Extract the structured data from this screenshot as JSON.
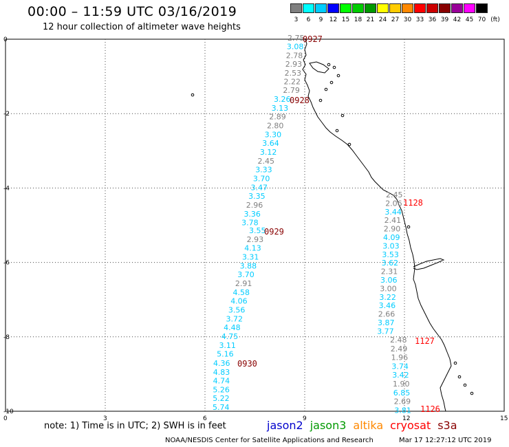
{
  "header": {
    "title": "00:00 – 11:59 UTC 03/16/2019",
    "subtitle": "12 hour collection of altimeter wave heights"
  },
  "legend": {
    "unit": "(ft)",
    "bins": [
      {
        "label": "3",
        "color": "#808080"
      },
      {
        "label": "6",
        "color": "#00ffff"
      },
      {
        "label": "9",
        "color": "#00ccff"
      },
      {
        "label": "12",
        "color": "#0000ff"
      },
      {
        "label": "15",
        "color": "#00ff00"
      },
      {
        "label": "18",
        "color": "#00cc00"
      },
      {
        "label": "21",
        "color": "#009900"
      },
      {
        "label": "24",
        "color": "#ffff00"
      },
      {
        "label": "27",
        "color": "#ffcc00"
      },
      {
        "label": "30",
        "color": "#ff8800"
      },
      {
        "label": "33",
        "color": "#ff0000"
      },
      {
        "label": "36",
        "color": "#cc0000"
      },
      {
        "label": "39",
        "color": "#880000"
      },
      {
        "label": "42",
        "color": "#990099"
      },
      {
        "label": "45",
        "color": "#ff00ff"
      },
      {
        "label": "70",
        "color": "#000000"
      }
    ]
  },
  "axes": {
    "x_ticks": [
      "0",
      "3",
      "6",
      "9",
      "12",
      "15"
    ],
    "y_ticks": [
      "0",
      "-2",
      "-4",
      "-6",
      "-8",
      "-10"
    ]
  },
  "colors": {
    "gray": "#808080",
    "cyan": "#00ccff",
    "pass_dark": "#880000",
    "pass_red": "#ff0000"
  },
  "tracks": [
    {
      "pass": "0927",
      "pass_color": "dark",
      "values": [
        {
          "v": "2.75",
          "c": "gray"
        },
        {
          "v": "3.08",
          "c": "cyan"
        },
        {
          "v": "2.78",
          "c": "gray"
        },
        {
          "v": "2.93",
          "c": "gray"
        },
        {
          "v": "2.53",
          "c": "gray"
        },
        {
          "v": "2.22",
          "c": "gray"
        },
        {
          "v": "2.79",
          "c": "gray"
        }
      ]
    },
    {
      "pass": "0928",
      "pass_color": "dark",
      "values": [
        {
          "v": "3.26",
          "c": "cyan"
        },
        {
          "v": "3.13",
          "c": "cyan"
        },
        {
          "v": "2.89",
          "c": "gray"
        },
        {
          "v": "2.80",
          "c": "gray"
        },
        {
          "v": "3.30",
          "c": "cyan"
        },
        {
          "v": "3.64",
          "c": "cyan"
        },
        {
          "v": "3.12",
          "c": "cyan"
        },
        {
          "v": "2.45",
          "c": "gray"
        },
        {
          "v": "3.33",
          "c": "cyan"
        },
        {
          "v": "3.70",
          "c": "cyan"
        },
        {
          "v": "3.47",
          "c": "cyan"
        },
        {
          "v": "3.35",
          "c": "cyan"
        },
        {
          "v": "2.96",
          "c": "gray"
        },
        {
          "v": "3.36",
          "c": "cyan"
        },
        {
          "v": "3.78",
          "c": "cyan"
        }
      ]
    },
    {
      "pass": "0929",
      "pass_color": "dark",
      "values": [
        {
          "v": "3.55",
          "c": "cyan"
        },
        {
          "v": "2.93",
          "c": "gray"
        },
        {
          "v": "4.13",
          "c": "cyan"
        },
        {
          "v": "3.31",
          "c": "cyan"
        },
        {
          "v": "3.88",
          "c": "cyan"
        },
        {
          "v": "3.70",
          "c": "cyan"
        },
        {
          "v": "2.91",
          "c": "gray"
        },
        {
          "v": "4.58",
          "c": "cyan"
        },
        {
          "v": "4.06",
          "c": "cyan"
        },
        {
          "v": "3.56",
          "c": "cyan"
        },
        {
          "v": "3.72",
          "c": "cyan"
        },
        {
          "v": "4.48",
          "c": "cyan"
        },
        {
          "v": "4.75",
          "c": "cyan"
        },
        {
          "v": "3.11",
          "c": "cyan"
        },
        {
          "v": "5.16",
          "c": "cyan"
        }
      ]
    },
    {
      "pass": "0930",
      "pass_color": "dark",
      "values": [
        {
          "v": "4.36",
          "c": "cyan"
        },
        {
          "v": "4.83",
          "c": "cyan"
        },
        {
          "v": "4.74",
          "c": "cyan"
        },
        {
          "v": "5.26",
          "c": "cyan"
        },
        {
          "v": "5.22",
          "c": "cyan"
        },
        {
          "v": "5.74",
          "c": "cyan"
        }
      ]
    },
    {
      "pass": "1128",
      "pass_color": "red",
      "values": [
        {
          "v": "2.45",
          "c": "gray"
        },
        {
          "v": "2.06",
          "c": "gray"
        },
        {
          "v": "3.44",
          "c": "cyan"
        },
        {
          "v": "2.41",
          "c": "gray"
        },
        {
          "v": "2.90",
          "c": "gray"
        },
        {
          "v": "4.09",
          "c": "cyan"
        },
        {
          "v": "3.03",
          "c": "cyan"
        },
        {
          "v": "3.53",
          "c": "cyan"
        },
        {
          "v": "3.62",
          "c": "cyan"
        },
        {
          "v": "2.31",
          "c": "gray"
        },
        {
          "v": "3.06",
          "c": "cyan"
        },
        {
          "v": "3.00",
          "c": "gray"
        },
        {
          "v": "3.22",
          "c": "cyan"
        },
        {
          "v": "3.46",
          "c": "cyan"
        },
        {
          "v": "2.66",
          "c": "gray"
        },
        {
          "v": "3.87",
          "c": "cyan"
        },
        {
          "v": "3.77",
          "c": "cyan"
        }
      ]
    },
    {
      "pass": "1127",
      "pass_color": "red",
      "values": [
        {
          "v": "2.48",
          "c": "gray"
        },
        {
          "v": "2.49",
          "c": "gray"
        },
        {
          "v": "1.96",
          "c": "gray"
        },
        {
          "v": "3.74",
          "c": "cyan"
        },
        {
          "v": "3.42",
          "c": "cyan"
        },
        {
          "v": "1.90",
          "c": "gray"
        },
        {
          "v": "6.85",
          "c": "cyan"
        },
        {
          "v": "2.69",
          "c": "gray"
        },
        {
          "v": "3.81",
          "c": "cyan"
        }
      ]
    },
    {
      "pass": "1126",
      "pass_color": "red",
      "values": []
    }
  ],
  "note": "note: 1) Time is in UTC; 2) SWH is in feet",
  "satellites": [
    {
      "name": "jason2",
      "color": "#0000cc"
    },
    {
      "name": "jason3",
      "color": "#009900"
    },
    {
      "name": "altika",
      "color": "#ff8800"
    },
    {
      "name": "cryosat",
      "color": "#ff0000"
    },
    {
      "name": "s3a",
      "color": "#880000"
    }
  ],
  "footer": {
    "credit": "NOAA/NESDIS Center for Satellite Applications and Research",
    "timestamp": "Mar 17 12:27:12 UTC 2019"
  }
}
